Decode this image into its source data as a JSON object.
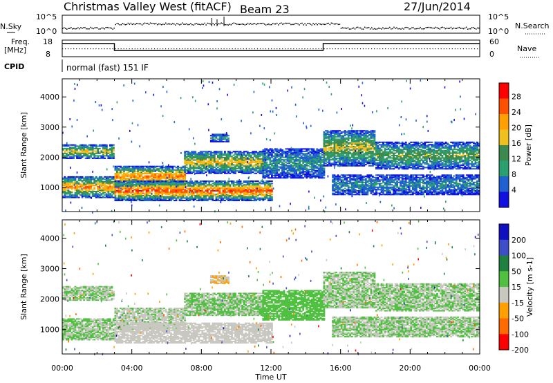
{
  "header": {
    "station": "Christmas Valley West (fitACF)",
    "beam": "Beam 23",
    "date": "27/Jun/2014"
  },
  "top_panels": {
    "nsky_label": "N.Sky",
    "nsky_ticks": [
      "10^5",
      "10^0"
    ],
    "nsearch_label": "N.Search",
    "nsearch_ticks": [
      "10^5",
      "10^0"
    ],
    "freq_label": "Freq.",
    "freq_unit": "[MHz]",
    "freq_ticks": [
      "18",
      "8"
    ],
    "nave_label": "Nave",
    "nave_ticks": [
      "60",
      "0"
    ],
    "cpid_label": "CPID",
    "cpid_value": "normal (fast) 151 IF"
  },
  "colors": {
    "power": [
      "#1010e0",
      "#2060d0",
      "#2aa070",
      "#3c8a50",
      "#f0c020",
      "#ffa000",
      "#ff5000",
      "#ff0000"
    ],
    "velocity": [
      "#1010c0",
      "#3d4ec8",
      "#208040",
      "#50c040",
      "#c8c8c0",
      "#ffa000",
      "#ff6a00",
      "#ff0000"
    ]
  },
  "chart_data": [
    {
      "type": "heatmap",
      "name": "power",
      "ylabel": "Slant Range [km]",
      "yticks": [
        1000,
        2000,
        3000,
        4000
      ],
      "ylim": [
        200,
        4600
      ],
      "xlim": [
        0,
        24
      ],
      "xticks": [
        "00:00",
        "04:00",
        "08:00",
        "12:00",
        "16:00",
        "20:00",
        "00:00"
      ],
      "xlabel": "Time UT",
      "colorbar": {
        "label": "Power [dB]",
        "ticks": [
          "28",
          "24",
          "20",
          "16",
          "12",
          "8",
          "4"
        ],
        "range": [
          0,
          32
        ]
      },
      "bands": [
        {
          "t0": 0.0,
          "t1": 3.0,
          "r0": 1950,
          "r1": 2400,
          "peak": 19
        },
        {
          "t0": 0.0,
          "t1": 3.0,
          "r0": 650,
          "r1": 1350,
          "peak": 24
        },
        {
          "t0": 3.0,
          "t1": 7.0,
          "r0": 1000,
          "r1": 1700,
          "peak": 25
        },
        {
          "t0": 7.0,
          "t1": 11.5,
          "r0": 1450,
          "r1": 2200,
          "peak": 20
        },
        {
          "t0": 11.5,
          "t1": 15.0,
          "r0": 1300,
          "r1": 2300,
          "peak": 10
        },
        {
          "t0": 3.0,
          "t1": 12.0,
          "r0": 550,
          "r1": 1200,
          "peak": 28
        },
        {
          "t0": 15.0,
          "t1": 18.0,
          "r0": 1700,
          "r1": 2900,
          "peak": 18
        },
        {
          "t0": 18.0,
          "t1": 24.0,
          "r0": 1600,
          "r1": 2500,
          "peak": 15
        },
        {
          "t0": 15.5,
          "t1": 24.0,
          "r0": 750,
          "r1": 1400,
          "peak": 9
        },
        {
          "t0": 8.5,
          "t1": 9.5,
          "r0": 2500,
          "r1": 2750,
          "peak": 10
        }
      ]
    },
    {
      "type": "heatmap",
      "name": "velocity",
      "ylabel": "Slant Range [km]",
      "yticks": [
        1000,
        2000,
        3000,
        4000
      ],
      "ylim": [
        200,
        4600
      ],
      "xlim": [
        0,
        24
      ],
      "xticks": [
        "00:00",
        "04:00",
        "08:00",
        "12:00",
        "16:00",
        "20:00",
        "00:00"
      ],
      "xlabel": "Time UT",
      "colorbar": {
        "label": "Velocity [m s-1]",
        "ticks": [
          "200",
          "100",
          "50",
          "15",
          "-15",
          "-50",
          "-100",
          "-200"
        ],
        "range": [
          -250,
          250
        ]
      },
      "bands": [
        {
          "t0": 0.0,
          "t1": 3.0,
          "r0": 1950,
          "r1": 2400,
          "peak": 0
        },
        {
          "t0": 0.0,
          "t1": 3.0,
          "r0": 650,
          "r1": 1350,
          "peak": 0
        },
        {
          "t0": 3.0,
          "t1": 7.0,
          "r0": 1000,
          "r1": 1700,
          "peak": -10
        },
        {
          "t0": 7.0,
          "t1": 11.5,
          "r0": 1450,
          "r1": 2200,
          "peak": 5
        },
        {
          "t0": 11.5,
          "t1": 15.0,
          "r0": 1300,
          "r1": 2300,
          "peak": 20
        },
        {
          "t0": 3.0,
          "t1": 12.0,
          "r0": 550,
          "r1": 1200,
          "peak": -40
        },
        {
          "t0": 15.0,
          "t1": 18.0,
          "r0": 1700,
          "r1": 2900,
          "peak": 0
        },
        {
          "t0": 18.0,
          "t1": 24.0,
          "r0": 1600,
          "r1": 2500,
          "peak": 0
        },
        {
          "t0": 15.5,
          "t1": 24.0,
          "r0": 750,
          "r1": 1400,
          "peak": 0
        },
        {
          "t0": 8.5,
          "t1": 9.5,
          "r0": 2500,
          "r1": 2750,
          "peak": -60
        }
      ]
    }
  ]
}
